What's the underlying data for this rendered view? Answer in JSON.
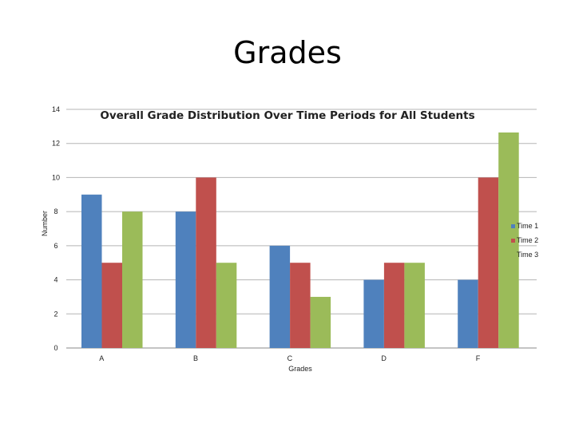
{
  "slide": {
    "title": "Grades"
  },
  "chart_data": {
    "type": "bar",
    "title": "Overall Grade Distribution Over Time Periods for All Students",
    "xlabel": "Grades",
    "ylabel": "Number",
    "categories": [
      "A",
      "B",
      "C",
      "D",
      "F"
    ],
    "series": [
      {
        "name": "Time 1",
        "values": [
          9,
          8,
          6,
          4,
          4
        ],
        "color": "#4F81BD"
      },
      {
        "name": "Time 2",
        "values": [
          5,
          10,
          5,
          5,
          10
        ],
        "color": "#C0504D"
      },
      {
        "name": "Time 3",
        "values": [
          8,
          5,
          3,
          5,
          13
        ],
        "color": "#9BBB59"
      }
    ],
    "ylim": [
      0,
      14
    ],
    "yticks": [
      0,
      2,
      4,
      6,
      8,
      10,
      12,
      14
    ],
    "grid": true,
    "legend": "right"
  }
}
